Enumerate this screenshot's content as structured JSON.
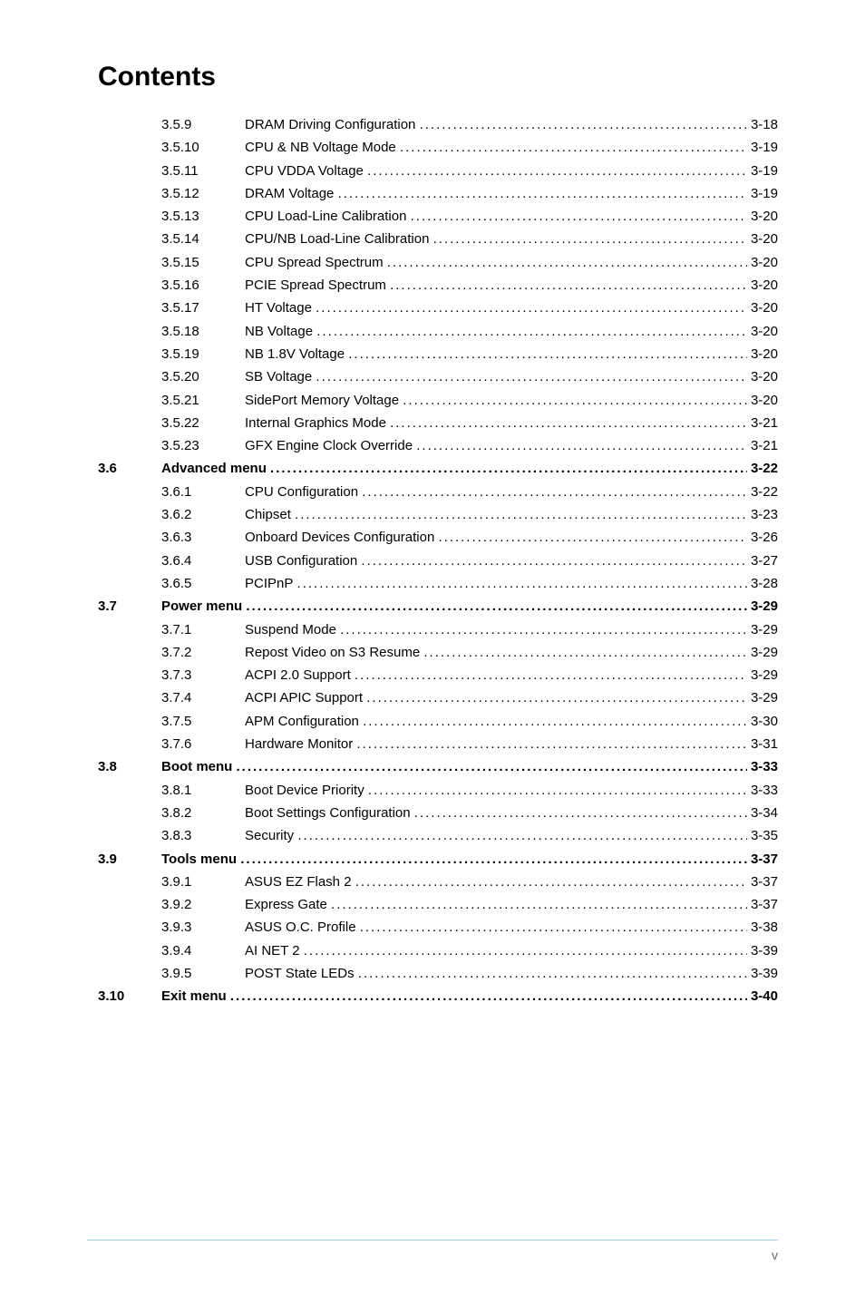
{
  "title": "Contents",
  "page_number": "v",
  "colors": {
    "text": "#000000",
    "background": "#ffffff",
    "footer_rule": "#9fcfe4",
    "footer_text": "#6b6b6b"
  },
  "typography": {
    "title_fontsize_pt": 22,
    "body_fontsize_pt": 11,
    "footer_fontsize_pt": 10,
    "title_weight": "bold",
    "font_family": "Arial, Helvetica, sans-serif"
  },
  "toc": [
    {
      "sec": "",
      "sub": "3.5.9",
      "label": "DRAM Driving Configuration",
      "page": "3-18",
      "bold": false
    },
    {
      "sec": "",
      "sub": "3.5.10",
      "label": "CPU & NB Voltage Mode",
      "page": "3-19",
      "bold": false
    },
    {
      "sec": "",
      "sub": "3.5.11",
      "label": "CPU VDDA Voltage",
      "page": "3-19",
      "bold": false
    },
    {
      "sec": "",
      "sub": "3.5.12",
      "label": "DRAM Voltage",
      "page": "3-19",
      "bold": false
    },
    {
      "sec": "",
      "sub": "3.5.13",
      "label": "CPU Load-Line Calibration",
      "page": "3-20",
      "bold": false
    },
    {
      "sec": "",
      "sub": "3.5.14",
      "label": "CPU/NB Load-Line Calibration",
      "page": "3-20",
      "bold": false
    },
    {
      "sec": "",
      "sub": "3.5.15",
      "label": "CPU Spread Spectrum",
      "page": "3-20",
      "bold": false
    },
    {
      "sec": "",
      "sub": "3.5.16",
      "label": "PCIE Spread Spectrum",
      "page": "3-20",
      "bold": false
    },
    {
      "sec": "",
      "sub": "3.5.17",
      "label": "HT Voltage",
      "page": "3-20",
      "bold": false
    },
    {
      "sec": "",
      "sub": "3.5.18",
      "label": "NB Voltage",
      "page": "3-20",
      "bold": false
    },
    {
      "sec": "",
      "sub": "3.5.19",
      "label": "NB 1.8V Voltage",
      "page": "3-20",
      "bold": false
    },
    {
      "sec": "",
      "sub": "3.5.20",
      "label": "SB Voltage",
      "page": "3-20",
      "bold": false
    },
    {
      "sec": "",
      "sub": "3.5.21",
      "label": "SidePort Memory Voltage",
      "page": "3-20",
      "bold": false
    },
    {
      "sec": "",
      "sub": "3.5.22",
      "label": "Internal Graphics Mode",
      "page": "3-21",
      "bold": false
    },
    {
      "sec": "",
      "sub": "3.5.23",
      "label": "GFX Engine Clock Override",
      "page": "3-21",
      "bold": false
    },
    {
      "sec": "3.6",
      "sub": "",
      "label": "Advanced menu",
      "page": "3-22",
      "bold": true
    },
    {
      "sec": "",
      "sub": "3.6.1",
      "label": "CPU Configuration",
      "page": "3-22",
      "bold": false
    },
    {
      "sec": "",
      "sub": "3.6.2",
      "label": "Chipset",
      "page": "3-23",
      "bold": false
    },
    {
      "sec": "",
      "sub": "3.6.3",
      "label": "Onboard Devices Configuration",
      "page": "3-26",
      "bold": false
    },
    {
      "sec": "",
      "sub": "3.6.4",
      "label": "USB Configuration",
      "page": "3-27",
      "bold": false
    },
    {
      "sec": "",
      "sub": "3.6.5",
      "label": "PCIPnP",
      "page": "3-28",
      "bold": false
    },
    {
      "sec": "3.7",
      "sub": "",
      "label": "Power menu",
      "page": "3-29",
      "bold": true
    },
    {
      "sec": "",
      "sub": "3.7.1",
      "label": "Suspend Mode",
      "page": "3-29",
      "bold": false
    },
    {
      "sec": "",
      "sub": "3.7.2",
      "label": "Repost Video on S3 Resume",
      "page": "3-29",
      "bold": false
    },
    {
      "sec": "",
      "sub": "3.7.3",
      "label": "ACPI 2.0 Support",
      "page": "3-29",
      "bold": false
    },
    {
      "sec": "",
      "sub": "3.7.4",
      "label": "ACPI APIC Support",
      "page": "3-29",
      "bold": false
    },
    {
      "sec": "",
      "sub": "3.7.5",
      "label": "APM Configuration",
      "page": "3-30",
      "bold": false
    },
    {
      "sec": "",
      "sub": "3.7.6",
      "label": "Hardware Monitor",
      "page": "3-31",
      "bold": false
    },
    {
      "sec": "3.8",
      "sub": "",
      "label": "Boot menu",
      "page": "3-33",
      "bold": true
    },
    {
      "sec": "",
      "sub": "3.8.1",
      "label": "Boot Device Priority",
      "page": "3-33",
      "bold": false
    },
    {
      "sec": "",
      "sub": "3.8.2",
      "label": "Boot Settings Configuration",
      "page": "3-34",
      "bold": false
    },
    {
      "sec": "",
      "sub": "3.8.3",
      "label": "Security",
      "page": "3-35",
      "bold": false
    },
    {
      "sec": "3.9",
      "sub": "",
      "label": "Tools menu",
      "page": "3-37",
      "bold": true
    },
    {
      "sec": "",
      "sub": "3.9.1",
      "label": "ASUS EZ Flash 2",
      "page": "3-37",
      "bold": false
    },
    {
      "sec": "",
      "sub": "3.9.2",
      "label": "Express Gate",
      "page": "3-37",
      "bold": false
    },
    {
      "sec": "",
      "sub": "3.9.3",
      "label": "ASUS O.C. Profile",
      "page": "3-38",
      "bold": false
    },
    {
      "sec": "",
      "sub": "3.9.4",
      "label": "AI NET 2",
      "page": "3-39",
      "bold": false
    },
    {
      "sec": "",
      "sub": "3.9.5",
      "label": "POST State LEDs",
      "page": "3-39",
      "bold": false
    },
    {
      "sec": "3.10",
      "sub": "",
      "label": "Exit menu",
      "page": "3-40",
      "bold": true
    }
  ]
}
